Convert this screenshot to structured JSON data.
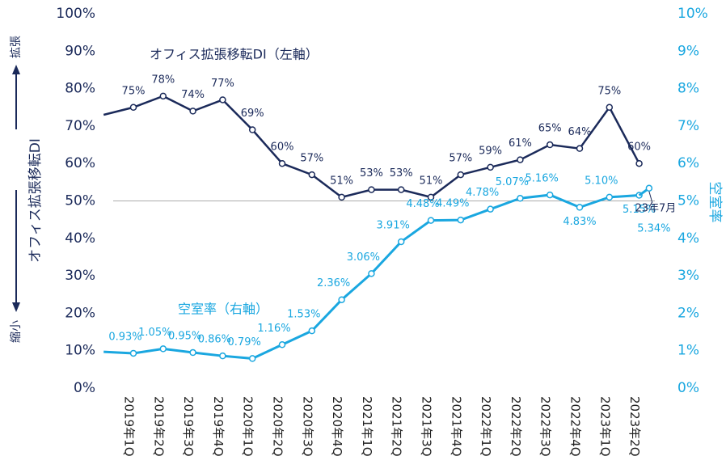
{
  "chart_data": {
    "type": "line",
    "categories": [
      null,
      "2019年1Q",
      "2019年2Q",
      "2019年3Q",
      "2019年4Q",
      "2020年1Q",
      "2020年2Q",
      "2020年3Q",
      "2020年4Q",
      "2021年1Q",
      "2021年2Q",
      "2021年3Q",
      "2021年4Q",
      "2022年1Q",
      "2022年2Q",
      "2022年3Q",
      "2022年4Q",
      "2023年1Q",
      "2023年2Q"
    ],
    "ylim": [
      0,
      100
    ],
    "yticks": [
      {
        "value": 0,
        "label": "0%"
      },
      {
        "value": 10,
        "label": "10%"
      },
      {
        "value": 20,
        "label": "20%"
      },
      {
        "value": 30,
        "label": "30%"
      },
      {
        "value": 40,
        "label": "40%"
      },
      {
        "value": 50,
        "label": "50%"
      },
      {
        "value": 60,
        "label": "60%"
      },
      {
        "value": 70,
        "label": "70%"
      },
      {
        "value": 80,
        "label": "80%"
      },
      {
        "value": 90,
        "label": "90%"
      },
      {
        "value": 100,
        "label": "100%"
      }
    ],
    "y2lim": [
      0,
      10
    ],
    "y2ticks": [
      {
        "value": 0,
        "label": "0%"
      },
      {
        "value": 1,
        "label": "1%"
      },
      {
        "value": 2,
        "label": "2%"
      },
      {
        "value": 3,
        "label": "3%"
      },
      {
        "value": 4,
        "label": "4%"
      },
      {
        "value": 5,
        "label": "5%"
      },
      {
        "value": 6,
        "label": "6%"
      },
      {
        "value": 7,
        "label": "7%"
      },
      {
        "value": 8,
        "label": "8%"
      },
      {
        "value": 9,
        "label": "9%"
      },
      {
        "value": 10,
        "label": "10%"
      }
    ],
    "y_label": "オフィス拡張移転DI",
    "y_label_top": "拡張",
    "y_label_bottom": "縮小",
    "y2_label": "空室率",
    "reference_line": 50,
    "series": [
      {
        "name": "オフィス拡張移転DI（左軸）",
        "color": "#1b2a5a",
        "values": [
          73,
          75,
          78,
          74,
          77,
          69,
          60,
          57,
          51,
          53,
          53,
          51,
          57,
          59,
          61,
          65,
          64,
          75,
          60
        ],
        "value_labels": [
          null,
          "75%",
          "78%",
          "74%",
          "77%",
          "69%",
          "60%",
          "57%",
          "51%",
          "53%",
          "53%",
          "51%",
          "57%",
          "59%",
          "61%",
          "65%",
          "64%",
          "75%",
          "60%"
        ]
      },
      {
        "name": "空室率（右軸）",
        "color": "#1aa7e0",
        "axis": "y2",
        "values": [
          0.97,
          0.93,
          1.05,
          0.95,
          0.86,
          0.79,
          1.16,
          1.53,
          2.36,
          3.06,
          3.91,
          4.48,
          4.49,
          4.78,
          5.07,
          5.16,
          4.83,
          5.1,
          5.15
        ],
        "value_labels": [
          null,
          "0.93%",
          "1.05%",
          "0.95%",
          "0.86%",
          "0.79%",
          "1.16%",
          "1.53%",
          "2.36%",
          "3.06%",
          "3.91%",
          "4.48%",
          "4.49%",
          "4.78%",
          "5.07%",
          "5.16%",
          "4.83%",
          "5.10%",
          "5.15%"
        ]
      }
    ],
    "annotation": {
      "text": "23年7月",
      "value": 5.34,
      "value_label": "5.34%"
    }
  }
}
